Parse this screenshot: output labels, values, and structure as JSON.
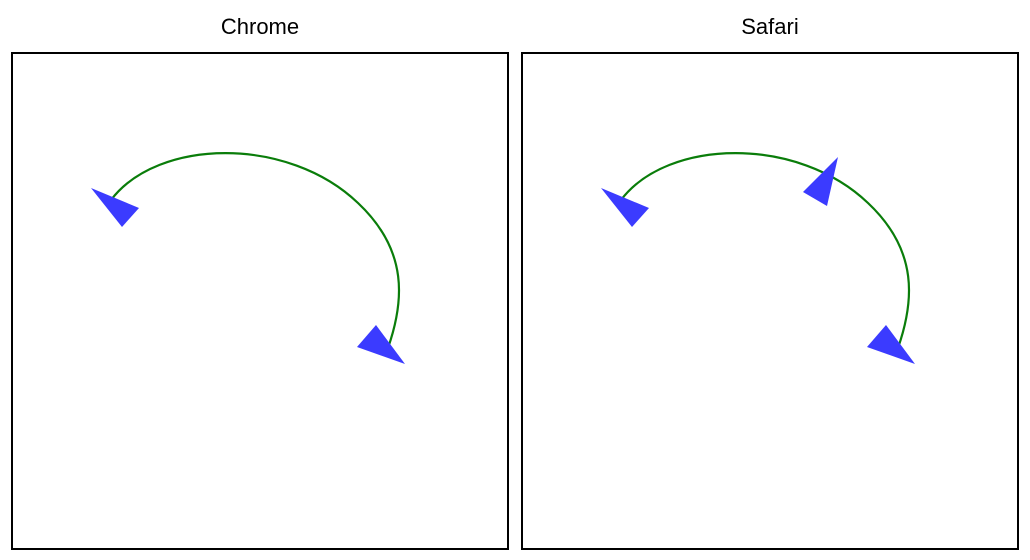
{
  "panels": [
    {
      "title": "Chrome"
    },
    {
      "title": "Safari"
    }
  ],
  "colors": {
    "path_stroke": "#0a7d0a",
    "marker_fill": "#3b3bff",
    "border": "#000000",
    "background": "#ffffff"
  }
}
